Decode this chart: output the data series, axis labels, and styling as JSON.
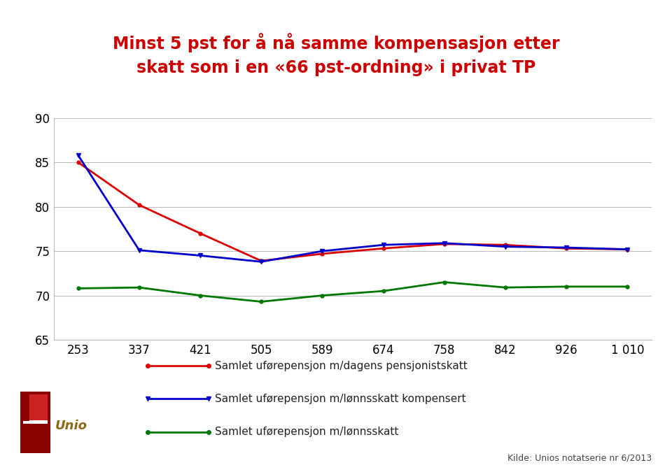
{
  "title": "Minst 5 pst for å nå samme kompensasjon etter\nskatt som i en «66 pst-ordning» i privat TP",
  "title_color": "#cc0000",
  "x_labels": [
    "253",
    "337",
    "421",
    "505",
    "589",
    "674",
    "758",
    "842",
    "926",
    "1 010"
  ],
  "red_line": [
    85.0,
    80.2,
    77.0,
    73.9,
    74.7,
    75.3,
    75.8,
    75.7,
    75.3,
    75.2
  ],
  "blue_line": [
    85.8,
    75.1,
    74.5,
    73.8,
    75.0,
    75.7,
    75.9,
    75.5,
    75.4,
    75.2
  ],
  "green_line": [
    70.8,
    70.9,
    70.0,
    69.3,
    70.0,
    70.5,
    71.5,
    70.9,
    71.0,
    71.0
  ],
  "red_color": "#dd0000",
  "blue_color": "#0000cc",
  "green_color": "#007700",
  "ylim": [
    65,
    90
  ],
  "yticks": [
    65,
    70,
    75,
    80,
    85,
    90
  ],
  "legend1": "Samlet uførepensjon m/dagens pensjonistskatt",
  "legend2": "Samlet uførepensjon m/lønnsskatt kompensert",
  "legend3": "Samlet uførepensjon m/lønnsskatt",
  "source_text": "Kilde: Unios notatserie nr 6/2013",
  "background_color": "#ffffff",
  "grid_color": "#bbbbbb",
  "tick_fontsize": 12,
  "legend_fontsize": 11,
  "title_fontsize": 17
}
